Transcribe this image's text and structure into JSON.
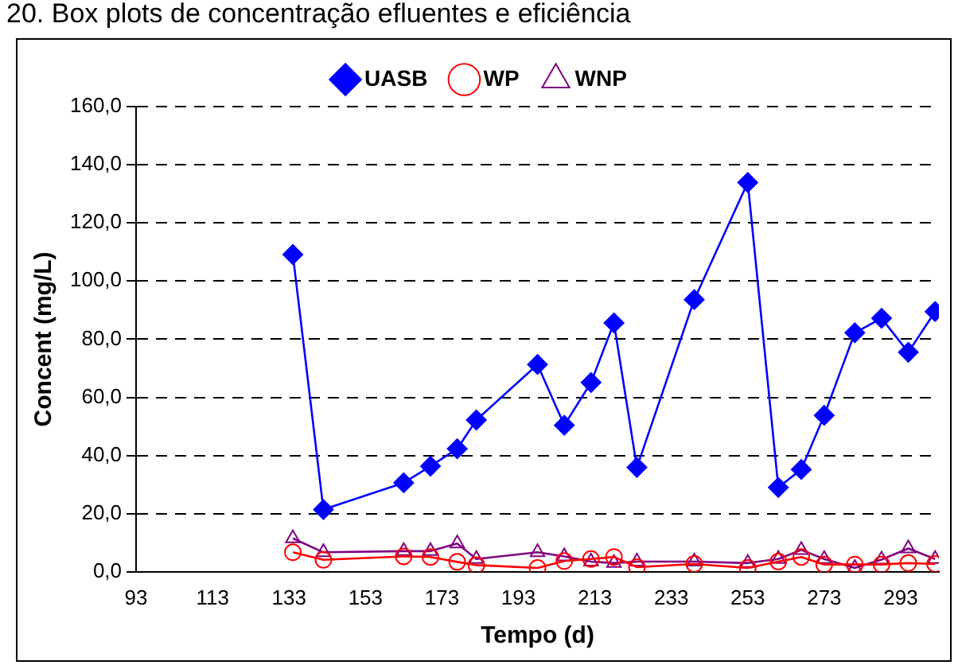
{
  "chart_data": {
    "type": "line",
    "title": "20. Box plots de concentração efluentes e eficiência",
    "xlabel": "Tempo (d)",
    "ylabel": "Concent (mg/L)",
    "x": [
      134,
      142,
      163,
      170,
      177,
      182,
      198,
      205,
      212,
      218,
      224,
      239,
      253,
      261,
      267,
      273,
      281,
      288,
      295,
      302
    ],
    "series": [
      {
        "name": "UASB",
        "color": "#0000ff",
        "marker": "diamond",
        "values": [
          109.1,
          21.4,
          30.6,
          36.3,
          42.3,
          52.2,
          71.3,
          50.4,
          65.1,
          85.6,
          35.9,
          93.6,
          133.9,
          29.0,
          35.2,
          53.8,
          82.2,
          87.2,
          75.5,
          89.5
        ]
      },
      {
        "name": "WP",
        "color": "#ff0000",
        "marker": "circle",
        "values": [
          6.7,
          4.1,
          5.3,
          5.1,
          3.4,
          2.3,
          1.3,
          3.7,
          4.4,
          5.1,
          1.6,
          2.7,
          1.3,
          3.5,
          5.1,
          2.5,
          2.5,
          2.5,
          3.0,
          2.7
        ]
      },
      {
        "name": "WNP",
        "color": "#800080",
        "marker": "triangle",
        "values": [
          11.5,
          6.7,
          7.1,
          7.1,
          9.7,
          4.4,
          6.7,
          5.3,
          3.5,
          3.0,
          3.5,
          3.5,
          3.0,
          4.4,
          7.5,
          4.4,
          1.3,
          4.2,
          8.0,
          4.4
        ]
      }
    ],
    "xlim": [
      93,
      303
    ],
    "xticks": [
      93,
      113,
      133,
      153,
      173,
      193,
      213,
      233,
      253,
      273,
      293
    ],
    "ylim": [
      0,
      160
    ],
    "yticks": [
      {
        "value": 0,
        "label": "0,0"
      },
      {
        "value": 20,
        "label": "20,0"
      },
      {
        "value": 40,
        "label": "40,0"
      },
      {
        "value": 60,
        "label": "60,0"
      },
      {
        "value": 80,
        "label": "80,0"
      },
      {
        "value": 100,
        "label": "100,0"
      },
      {
        "value": 120,
        "label": "120,0"
      },
      {
        "value": 140,
        "label": "140,0"
      },
      {
        "value": 160,
        "label": "160,0"
      }
    ],
    "grid": "y",
    "legend": "top",
    "line_style": "solid"
  }
}
